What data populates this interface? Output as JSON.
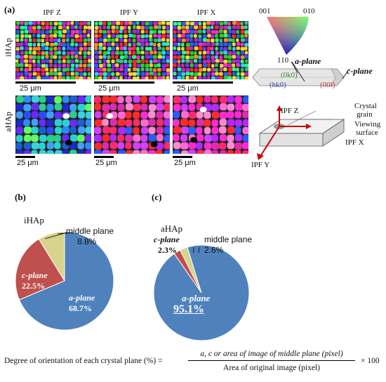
{
  "panel_a": {
    "label": "(a)",
    "columns": [
      "IPF Z",
      "IPF Y",
      "IPF X"
    ],
    "rows": [
      "iHAp",
      "aHAp"
    ],
    "scale_text": "25 μm"
  },
  "triangle": {
    "c001": "001",
    "c010": "010",
    "c110": "110"
  },
  "crystal": {
    "a_plane": "a-plane",
    "c_plane": "c-plane",
    "face_0k0": "(0k0)",
    "face_hk0": "(hk0)",
    "face_00l": "(00l)"
  },
  "grain": {
    "ipf_z": "IPF Z",
    "ipf_x": "IPF X",
    "ipf_y": "IPF Y",
    "crystal": "Crystal",
    "grain": "grain",
    "viewing": "Viewing",
    "surface": "surface"
  },
  "panel_b": {
    "label": "(b)",
    "title": "iHAp"
  },
  "panel_c": {
    "label": "(c)",
    "title": "aHAp"
  },
  "chart_data": [
    {
      "type": "pie",
      "title": "iHAp",
      "categories": [
        "a-plane",
        "c-plane",
        "middle plane"
      ],
      "values": [
        68.7,
        22.5,
        8.8
      ],
      "labels": [
        "68.7%",
        "22.5%",
        "8.8%"
      ],
      "colors": [
        "#4f81bd",
        "#c0504d",
        "#d7d28c"
      ]
    },
    {
      "type": "pie",
      "title": "aHAp",
      "categories": [
        "a-plane",
        "c-plane",
        "middle plane"
      ],
      "values": [
        95.1,
        2.3,
        2.6
      ],
      "labels": [
        "95.1%",
        "2.3%",
        "2.6%"
      ],
      "colors": [
        "#4f81bd",
        "#c0504d",
        "#d7d28c"
      ]
    }
  ],
  "formula": {
    "lhs": "Degree of orientation of each crystal plane (%) =",
    "numerator": "a, c or area of image of middle plane (pixel)",
    "denominator": "Area of original image (pixel)",
    "factor": "× 100"
  }
}
